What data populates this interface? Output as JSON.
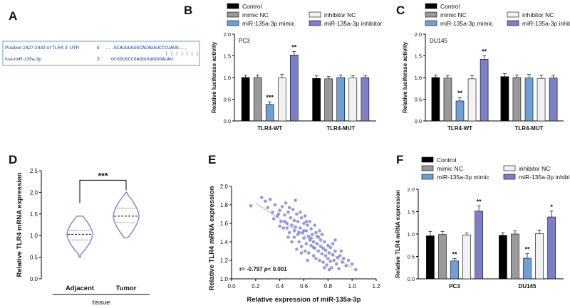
{
  "panel_letters": [
    "A",
    "B",
    "C",
    "D",
    "E",
    "F"
  ],
  "colors": {
    "control": "#000000",
    "mimic_nc": "#9a9a9a",
    "inhibitor_nc": "#f2f2f2",
    "mimic": "#6ea0d8",
    "inhibitor": "#7b7fc9",
    "violin": "#8c8fd0",
    "scatter": "#8c8fd0",
    "fitline": "#c7cde0",
    "seq_text": "#1b3f8f",
    "seq_border": "#6b9bd1"
  },
  "panel_a": {
    "utr_label": "Position 2427-2433 of TLR4 3' UTR",
    "utr_end": "5'",
    "utr_seq": "...GCAUUUGUGCACAUAUCCCUAUG...",
    "mir_label": "hsa-miR-135a-3p",
    "mir_end": "3'",
    "mir_seq": "GCGGUGCCGAGGUUAGGGAUAU",
    "pairing": "| | | | | | |"
  },
  "legend_labels": [
    "Control",
    "mimic NC",
    "inhibitor NC",
    "miR-135a-3p mimic",
    "miR-135a-3p inhibitor"
  ],
  "chart_data": [
    {
      "panel": "B",
      "type": "bar",
      "title": "PC3",
      "ylabel": "Relative luciferase activity",
      "categories": [
        "TLR4-WT",
        "TLR4-MUT"
      ],
      "ylim": [
        0.0,
        2.0
      ],
      "yticks": [
        "0.0",
        "0.5",
        "1.0",
        "1.5",
        "2.0"
      ],
      "series": [
        {
          "name": "Control",
          "values": [
            1.0,
            0.98
          ],
          "errors": [
            0.05,
            0.06
          ]
        },
        {
          "name": "mimic NC",
          "values": [
            1.0,
            0.97
          ],
          "errors": [
            0.06,
            0.05
          ]
        },
        {
          "name": "miR-135a-3p mimic",
          "values": [
            0.38,
            1.0
          ],
          "errors": [
            0.06,
            0.06
          ]
        },
        {
          "name": "inhibitor NC",
          "values": [
            0.99,
            0.99
          ],
          "errors": [
            0.08,
            0.05
          ]
        },
        {
          "name": "miR-135a-3p inhibitor",
          "values": [
            1.52,
            1.0
          ],
          "errors": [
            0.08,
            0.05
          ]
        }
      ],
      "annotations": [
        {
          "series": 2,
          "category": 0,
          "text": "***"
        },
        {
          "series": 4,
          "category": 0,
          "text": "**"
        }
      ]
    },
    {
      "panel": "C",
      "type": "bar",
      "title": "DU145",
      "ylabel": "Relative luciferase activity",
      "categories": [
        "TLR4-WT",
        "TLR4-MUT"
      ],
      "ylim": [
        0.0,
        2.0
      ],
      "yticks": [
        "0.0",
        "0.5",
        "1.0",
        "1.5",
        "2.0"
      ],
      "series": [
        {
          "name": "Control",
          "values": [
            1.0,
            1.02
          ],
          "errors": [
            0.06,
            0.07
          ]
        },
        {
          "name": "mimic NC",
          "values": [
            0.99,
            1.0
          ],
          "errors": [
            0.05,
            0.06
          ]
        },
        {
          "name": "miR-135a-3p mimic",
          "values": [
            0.46,
            0.99
          ],
          "errors": [
            0.08,
            0.08
          ]
        },
        {
          "name": "inhibitor NC",
          "values": [
            0.97,
            0.98
          ],
          "errors": [
            0.07,
            0.07
          ]
        },
        {
          "name": "miR-135a-3p inhibitor",
          "values": [
            1.42,
            0.99
          ],
          "errors": [
            0.08,
            0.06
          ]
        }
      ],
      "annotations": [
        {
          "series": 2,
          "category": 0,
          "text": "**"
        },
        {
          "series": 4,
          "category": 0,
          "text": "**"
        }
      ]
    },
    {
      "panel": "D",
      "type": "violin",
      "ylabel": "Relative TLR4 mRNA expression",
      "xlabel": "tissue",
      "categories": [
        "Adjacent",
        "Tumor"
      ],
      "ylim": [
        0.0,
        2.5
      ],
      "yticks": [
        "0.0",
        "0.5",
        "1.0",
        "1.5",
        "2.0",
        "2.5"
      ],
      "groups": [
        {
          "name": "Adjacent",
          "min": 0.5,
          "q1": 0.9,
          "median": 1.03,
          "q3": 1.12,
          "max": 1.45
        },
        {
          "name": "Tumor",
          "min": 0.95,
          "q1": 1.3,
          "median": 1.45,
          "q3": 1.63,
          "max": 2.0
        }
      ],
      "significance": "***"
    },
    {
      "panel": "E",
      "type": "scatter",
      "xlabel": "Relative expression of miR-135a-3p",
      "ylabel": "Relative TLR4 mRNA expression",
      "xlim": [
        0.0,
        1.2
      ],
      "ylim": [
        1.0,
        2.0
      ],
      "xticks": [
        "0.0",
        "0.2",
        "0.4",
        "0.6",
        "0.8",
        "1.0",
        "1.2"
      ],
      "yticks": [
        "1.0",
        "1.2",
        "1.4",
        "1.6",
        "1.8",
        "2.0"
      ],
      "annotation": "r= -0.797 p < 0.001",
      "annotation_r": "r= -0.797",
      "annotation_p": "p",
      "annotation_rest": "< 0.001",
      "fit": {
        "x": [
          0.2,
          1.0
        ],
        "y": [
          1.82,
          1.12
        ]
      },
      "points": [
        [
          0.16,
          1.79
        ],
        [
          0.25,
          1.88
        ],
        [
          0.28,
          1.84
        ],
        [
          0.3,
          1.77
        ],
        [
          0.32,
          1.86
        ],
        [
          0.34,
          1.72
        ],
        [
          0.36,
          1.8
        ],
        [
          0.38,
          1.68
        ],
        [
          0.4,
          1.74
        ],
        [
          0.41,
          1.62
        ],
        [
          0.42,
          1.78
        ],
        [
          0.43,
          1.55
        ],
        [
          0.44,
          1.69
        ],
        [
          0.45,
          1.82
        ],
        [
          0.46,
          1.6
        ],
        [
          0.47,
          1.72
        ],
        [
          0.48,
          1.5
        ],
        [
          0.49,
          1.66
        ],
        [
          0.5,
          1.58
        ],
        [
          0.51,
          1.75
        ],
        [
          0.52,
          1.45
        ],
        [
          0.52,
          1.63
        ],
        [
          0.53,
          1.56
        ],
        [
          0.54,
          1.7
        ],
        [
          0.55,
          1.48
        ],
        [
          0.55,
          1.62
        ],
        [
          0.56,
          1.4
        ],
        [
          0.57,
          1.55
        ],
        [
          0.58,
          1.66
        ],
        [
          0.58,
          1.35
        ],
        [
          0.59,
          1.5
        ],
        [
          0.6,
          1.6
        ],
        [
          0.6,
          1.44
        ],
        [
          0.61,
          1.3
        ],
        [
          0.62,
          1.52
        ],
        [
          0.62,
          1.38
        ],
        [
          0.63,
          1.58
        ],
        [
          0.64,
          1.46
        ],
        [
          0.64,
          1.28
        ],
        [
          0.65,
          1.42
        ],
        [
          0.66,
          1.54
        ],
        [
          0.66,
          1.36
        ],
        [
          0.67,
          1.48
        ],
        [
          0.68,
          1.25
        ],
        [
          0.68,
          1.4
        ],
        [
          0.69,
          1.33
        ],
        [
          0.7,
          1.5
        ],
        [
          0.7,
          1.22
        ],
        [
          0.71,
          1.38
        ],
        [
          0.72,
          1.45
        ],
        [
          0.72,
          1.3
        ],
        [
          0.73,
          1.2
        ],
        [
          0.74,
          1.35
        ],
        [
          0.74,
          1.42
        ],
        [
          0.75,
          1.27
        ],
        [
          0.76,
          1.33
        ],
        [
          0.76,
          1.18
        ],
        [
          0.77,
          1.4
        ],
        [
          0.78,
          1.25
        ],
        [
          0.78,
          1.31
        ],
        [
          0.79,
          1.15
        ],
        [
          0.8,
          1.36
        ],
        [
          0.8,
          1.22
        ],
        [
          0.81,
          1.28
        ],
        [
          0.82,
          1.19
        ],
        [
          0.82,
          1.34
        ],
        [
          0.83,
          1.12
        ],
        [
          0.84,
          1.26
        ],
        [
          0.85,
          1.2
        ],
        [
          0.86,
          1.3
        ],
        [
          0.87,
          1.16
        ],
        [
          0.88,
          1.23
        ],
        [
          0.89,
          1.11
        ],
        [
          0.9,
          1.25
        ],
        [
          0.92,
          1.18
        ],
        [
          0.93,
          1.22
        ],
        [
          0.95,
          1.14
        ],
        [
          0.97,
          1.2
        ],
        [
          1.0,
          1.16
        ],
        [
          1.03,
          1.1
        ],
        [
          0.35,
          1.65
        ],
        [
          0.39,
          1.7
        ],
        [
          0.47,
          1.45
        ],
        [
          0.5,
          1.4
        ],
        [
          0.53,
          1.85
        ],
        [
          0.57,
          1.72
        ],
        [
          0.61,
          1.68
        ],
        [
          0.65,
          1.62
        ],
        [
          0.69,
          1.58
        ],
        [
          0.73,
          1.52
        ],
        [
          0.63,
          1.2
        ],
        [
          0.58,
          1.28
        ],
        [
          0.54,
          1.32
        ],
        [
          0.44,
          1.62
        ],
        [
          0.4,
          1.57
        ],
        [
          0.48,
          1.77
        ],
        [
          0.66,
          1.44
        ],
        [
          0.71,
          1.46
        ],
        [
          0.75,
          1.48
        ],
        [
          0.84,
          1.38
        ],
        [
          0.86,
          1.42
        ],
        [
          0.91,
          1.3
        ],
        [
          0.56,
          1.5
        ],
        [
          0.6,
          1.52
        ],
        [
          0.68,
          1.34
        ],
        [
          0.77,
          1.12
        ],
        [
          0.81,
          1.1
        ],
        [
          0.62,
          1.62
        ],
        [
          0.46,
          1.55
        ],
        [
          0.52,
          1.52
        ]
      ]
    },
    {
      "panel": "F",
      "type": "bar",
      "ylabel": "Relative TLR4 mRNA expression",
      "categories": [
        "PC3",
        "DU145"
      ],
      "ylim": [
        0.0,
        2.0
      ],
      "yticks": [
        "0.0",
        "0.5",
        "1.0",
        "1.5",
        "2.0"
      ],
      "series": [
        {
          "name": "Control",
          "values": [
            0.96,
            0.97
          ],
          "errors": [
            0.1,
            0.06
          ]
        },
        {
          "name": "mimic NC",
          "values": [
            0.99,
            1.0
          ],
          "errors": [
            0.07,
            0.07
          ]
        },
        {
          "name": "miR-135a-3p mimic",
          "values": [
            0.4,
            0.46
          ],
          "errors": [
            0.05,
            0.1
          ]
        },
        {
          "name": "inhibitor NC",
          "values": [
            0.98,
            1.01
          ],
          "errors": [
            0.04,
            0.08
          ]
        },
        {
          "name": "miR-135a-3p inhibitor",
          "values": [
            1.51,
            1.38
          ],
          "errors": [
            0.12,
            0.13
          ]
        }
      ],
      "annotations": [
        {
          "series": 2,
          "category": 0,
          "text": "**"
        },
        {
          "series": 4,
          "category": 0,
          "text": "**"
        },
        {
          "series": 2,
          "category": 1,
          "text": "**"
        },
        {
          "series": 4,
          "category": 1,
          "text": "*"
        }
      ]
    }
  ]
}
